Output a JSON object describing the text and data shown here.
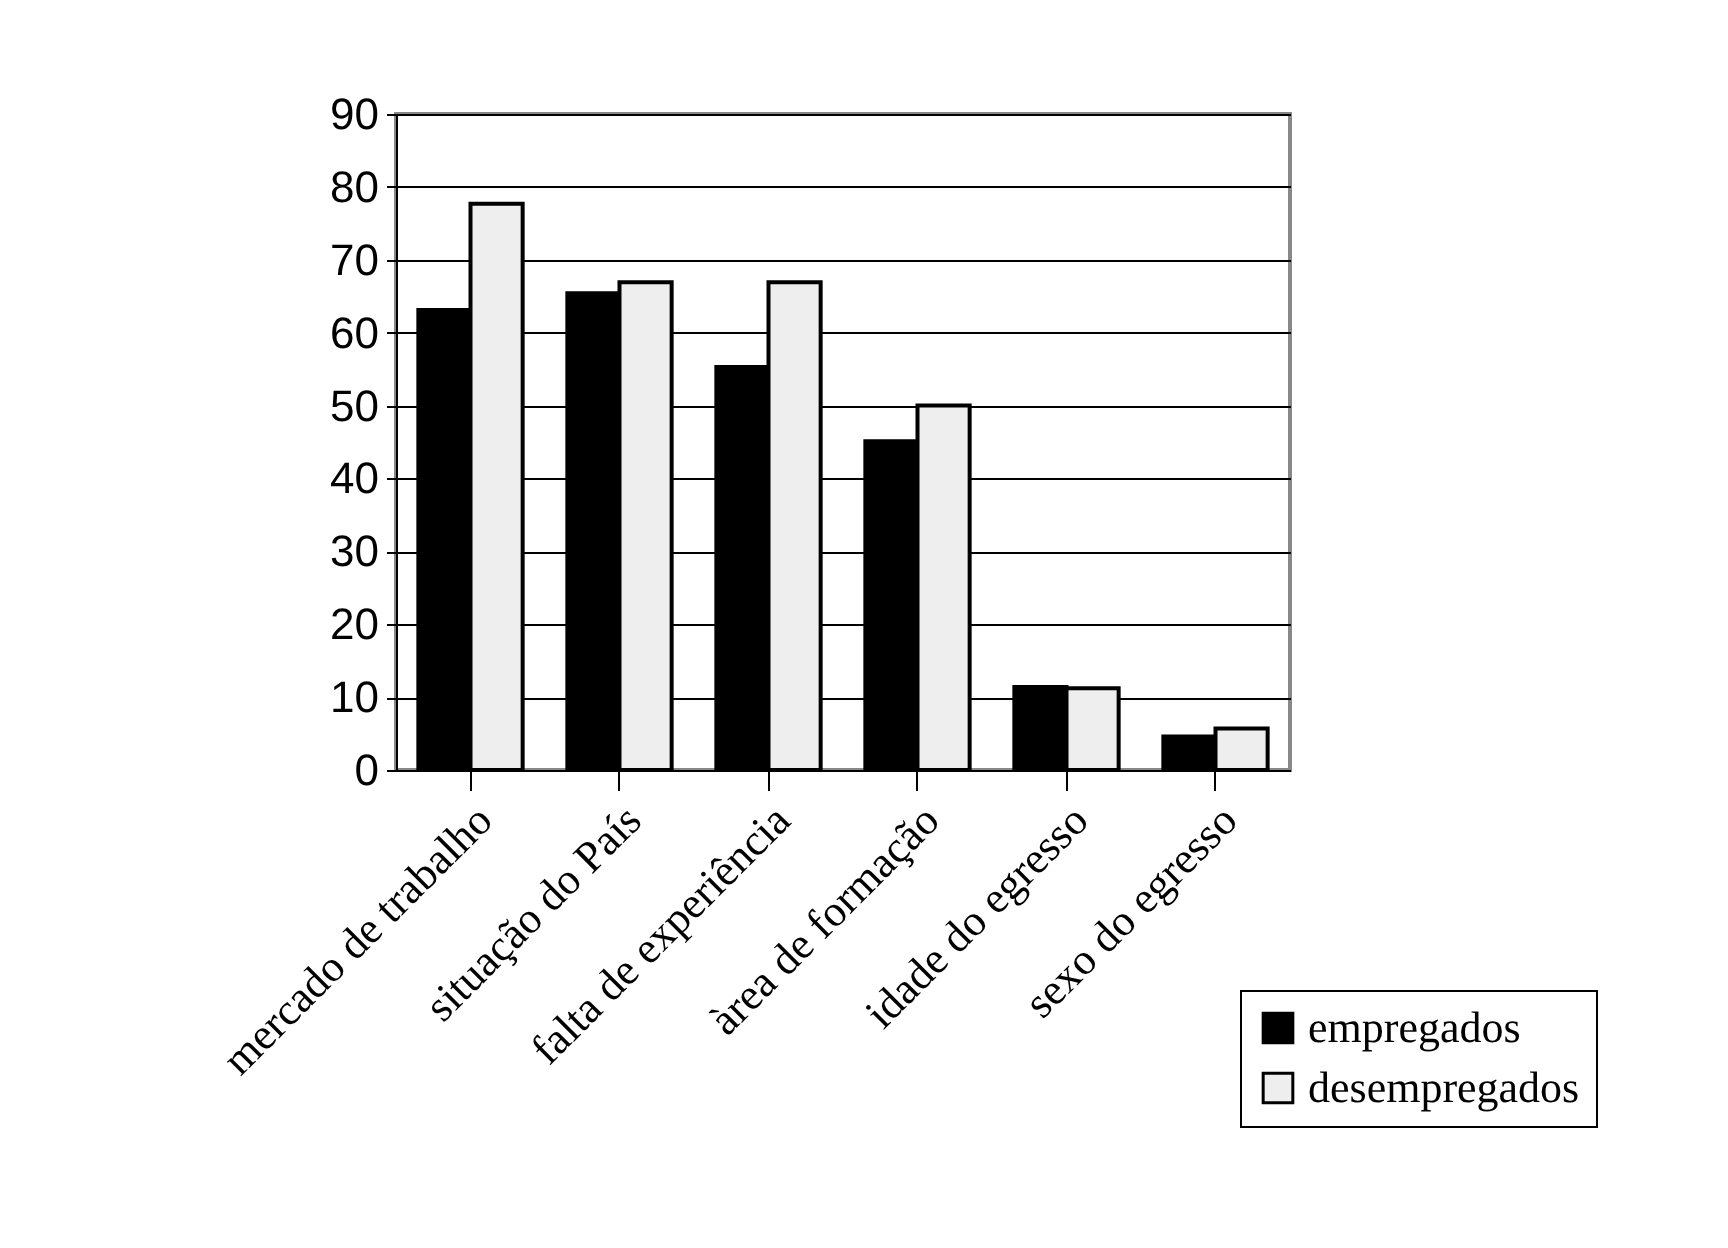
{
  "chart_data": {
    "type": "bar",
    "categories": [
      "mercado de  trabalho",
      "situação do País",
      "falta de experiência",
      "àrea de formação",
      "idade do egresso",
      "sexo do egresso"
    ],
    "series": [
      {
        "name": "empregados",
        "color": "#000000",
        "values": [
          63.1,
          65.4,
          55.3,
          45.1,
          11.4,
          4.6
        ]
      },
      {
        "name": "desempregados",
        "color": "#eeeeee",
        "values": [
          77.7,
          66.9,
          66.9,
          50,
          11.2,
          5.7
        ]
      }
    ],
    "ylim": [
      0,
      90
    ],
    "yticks": [
      0,
      10,
      20,
      30,
      40,
      50,
      60,
      70,
      80,
      90
    ],
    "grid": "y",
    "legend": "bottom right"
  }
}
